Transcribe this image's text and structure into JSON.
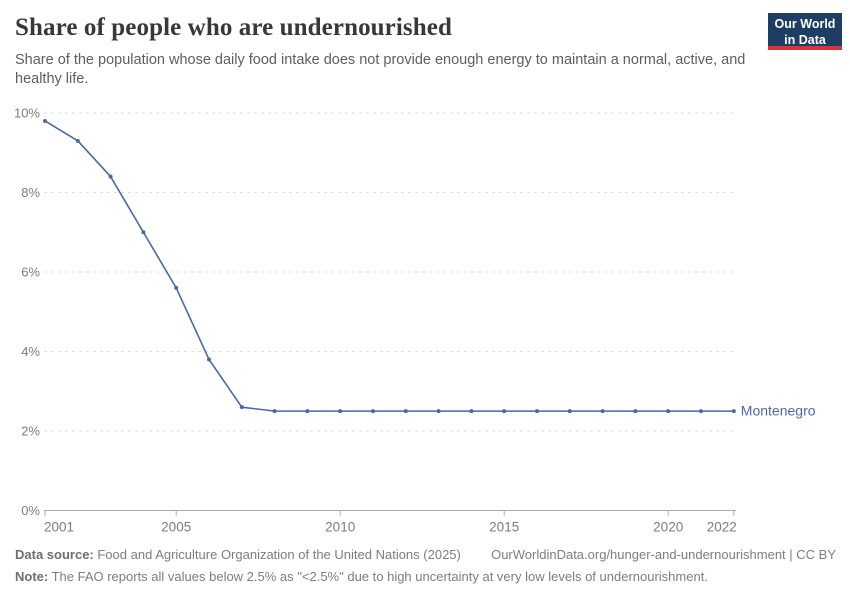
{
  "header": {
    "title": "Share of people who are undernourished",
    "subtitle": "Share of the population whose daily food intake does not provide enough energy to maintain a normal, active, and healthy life.",
    "logo": {
      "line1": "Our World",
      "line2": "in Data"
    }
  },
  "chart_data": {
    "type": "line",
    "title": "Share of people who are undernourished",
    "entity": "Montenegro",
    "unit": "%",
    "x": [
      2001,
      2002,
      2003,
      2004,
      2005,
      2006,
      2007,
      2008,
      2009,
      2010,
      2011,
      2012,
      2013,
      2014,
      2015,
      2016,
      2017,
      2018,
      2019,
      2020,
      2021,
      2022
    ],
    "values": [
      9.8,
      9.3,
      8.4,
      7.0,
      5.6,
      3.8,
      2.6,
      2.5,
      2.5,
      2.5,
      2.5,
      2.5,
      2.5,
      2.5,
      2.5,
      2.5,
      2.5,
      2.5,
      2.5,
      2.5,
      2.5,
      2.5
    ],
    "x_ticks": [
      2001,
      2005,
      2010,
      2015,
      2020,
      2022
    ],
    "y_ticks": [
      0,
      2,
      4,
      6,
      8,
      10
    ],
    "xlim": [
      2001,
      2022
    ],
    "ylim": [
      0,
      10
    ],
    "grid": true,
    "legend_position": "end-of-line",
    "colors": {
      "line": "#4a68a5",
      "gridline": "#dedede",
      "axis": "#a8a8a8",
      "tick_label": "#7c7c7c"
    }
  },
  "footer": {
    "datasource_label": "Data source:",
    "datasource_text": " Food and Agriculture Organization of the United Nations (2025)",
    "link": "OurWorldinData.org/hunger-and-undernourishment | CC BY",
    "note_label": "Note:",
    "note_text": " The FAO reports all values below 2.5% as \"<2.5%\" due to high uncertainty at very low levels of undernourishment."
  }
}
